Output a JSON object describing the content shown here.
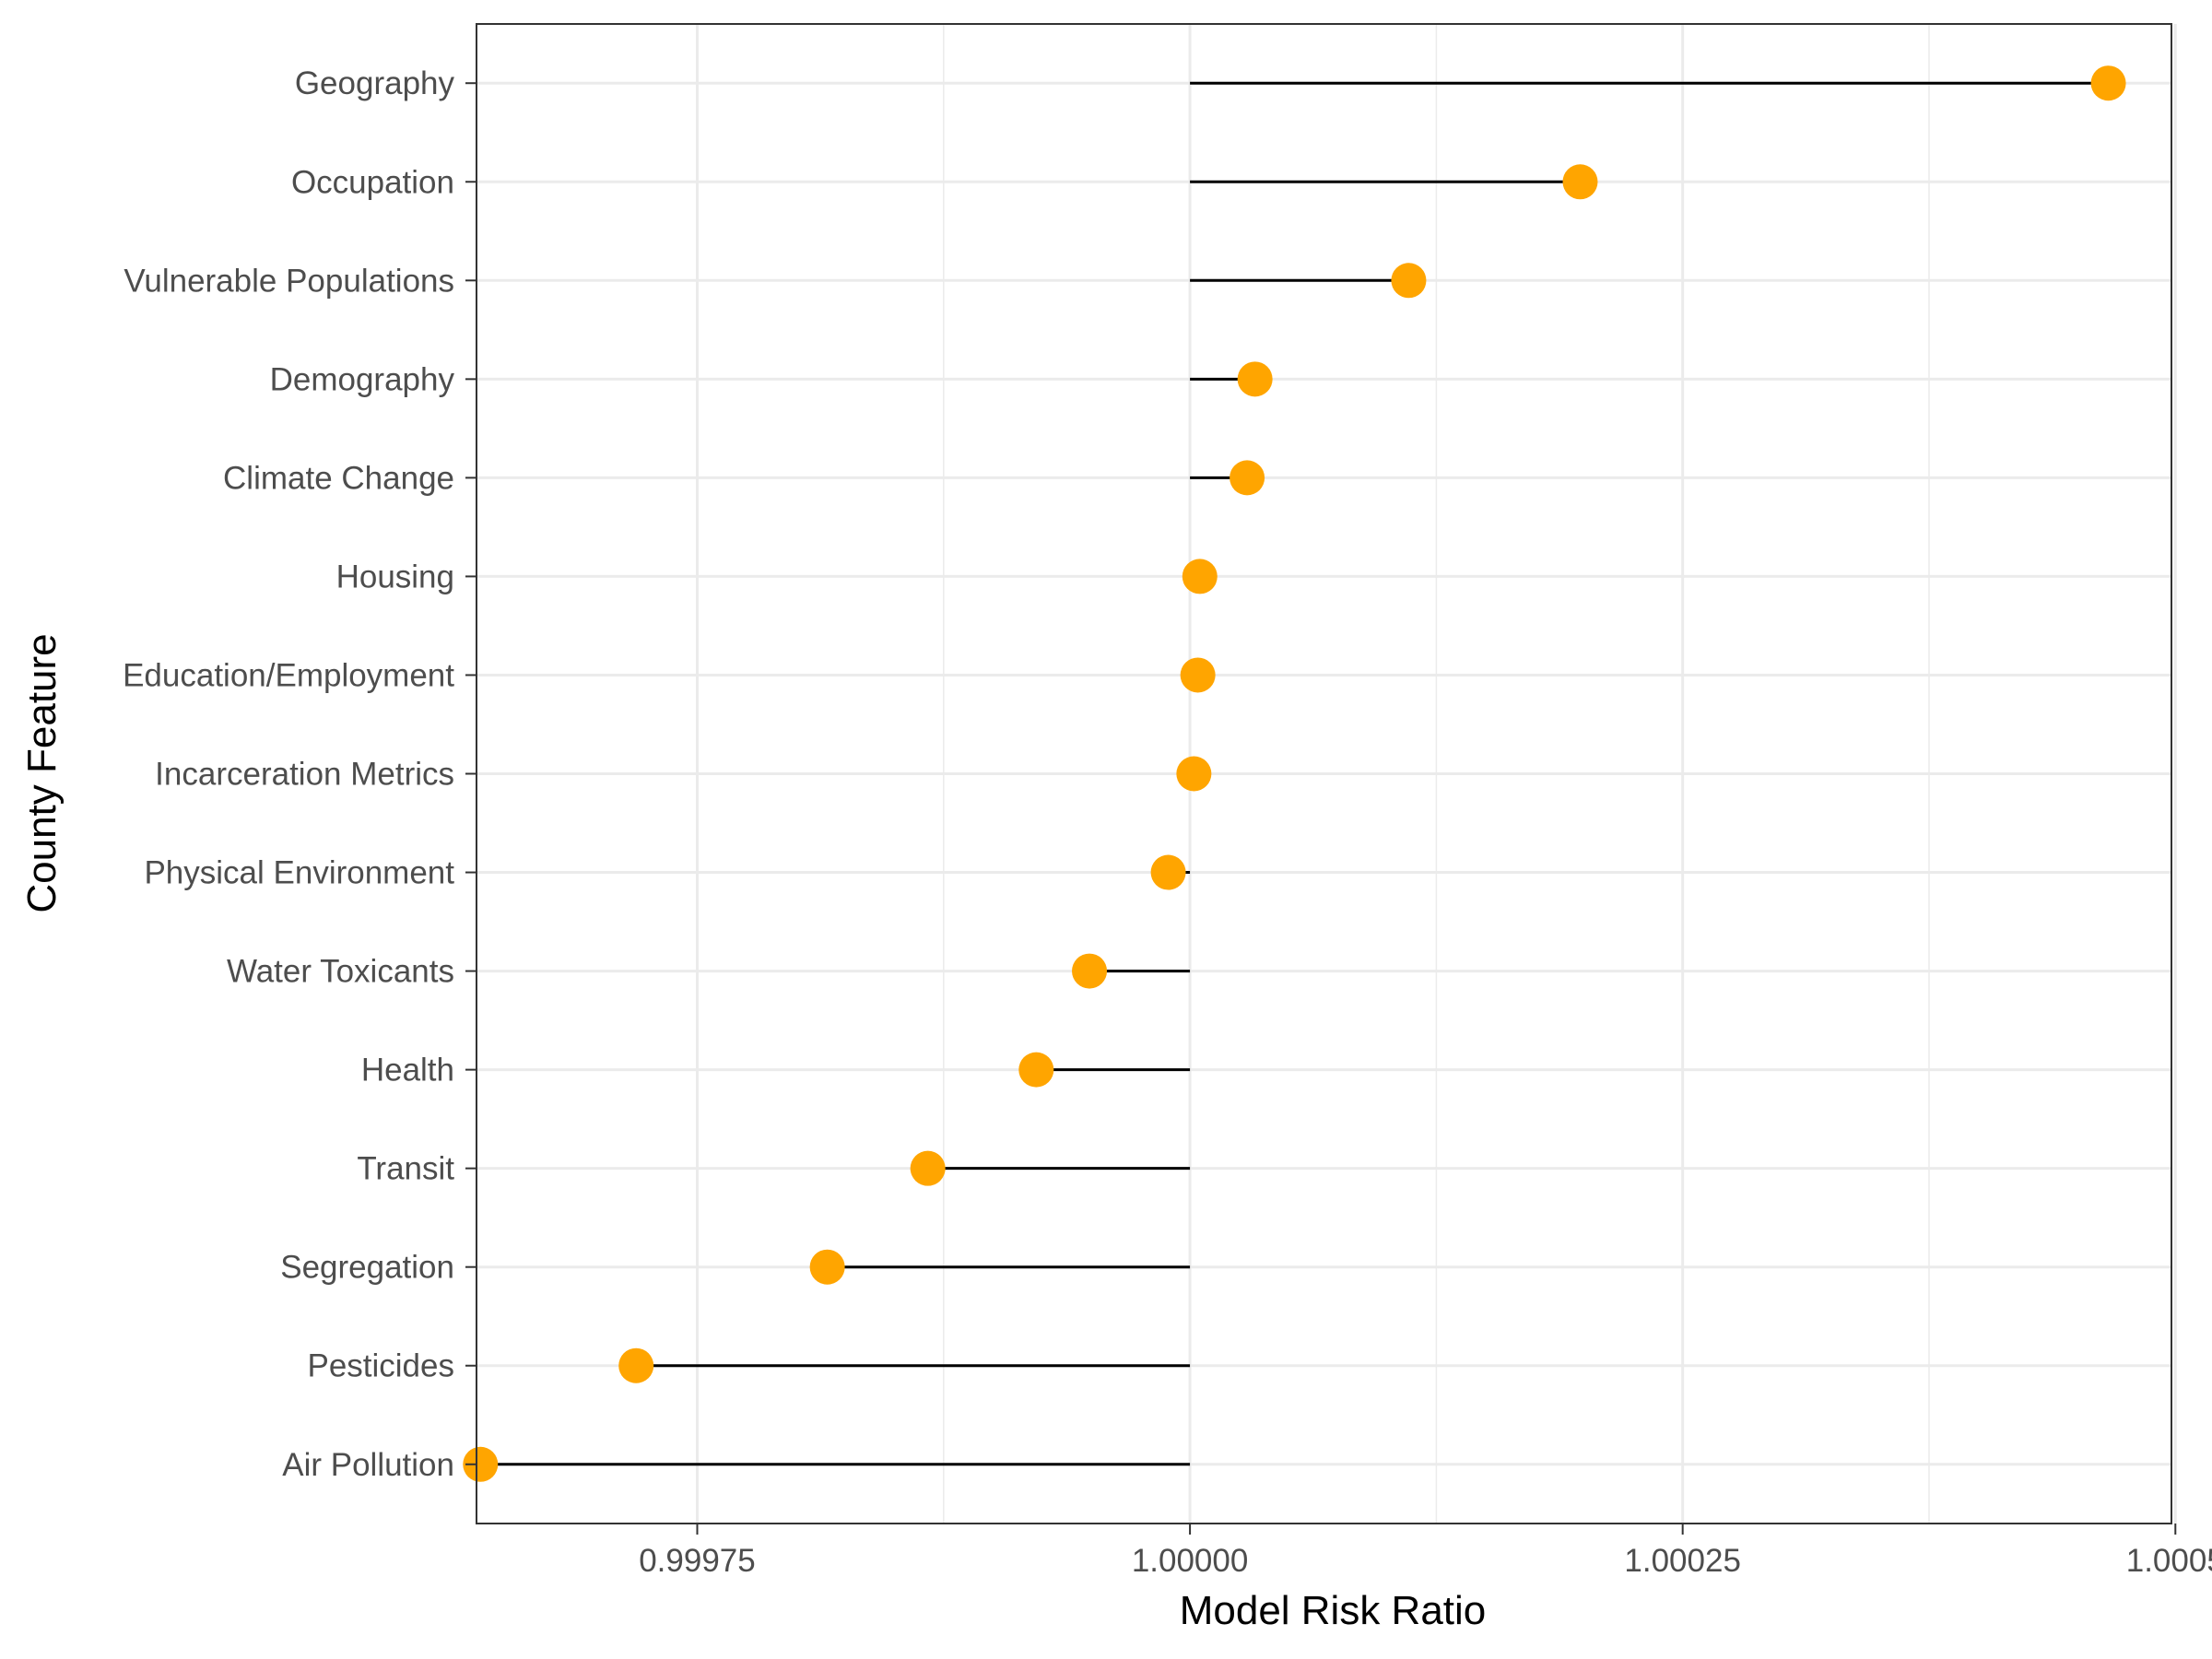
{
  "chart_data": {
    "type": "lollipop",
    "xlabel": "Model Risk Ratio",
    "ylabel": "County Feature",
    "baseline": 1.0,
    "xlim": [
      0.999638,
      1.000498
    ],
    "x_ticks": [
      0.99975,
      1.0,
      1.00025,
      1.0005
    ],
    "x_tick_labels": [
      "0.99975",
      "1.00000",
      "1.00025",
      "1.0005"
    ],
    "grid": true,
    "point_color": "#FFA500",
    "segment_color": "#000000",
    "categories": [
      "Geography",
      "Occupation",
      "Vulnerable Populations",
      "Demography",
      "Climate Change",
      "Housing",
      "Education/Employment",
      "Incarceration Metrics",
      "Physical Environment",
      "Water Toxicants",
      "Health",
      "Transit",
      "Segregation",
      "Pesticides",
      "Air Pollution"
    ],
    "values": [
      1.000466,
      1.000198,
      1.000111,
      1.000033,
      1.000029,
      1.000005,
      1.000004,
      1.000002,
      0.999989,
      0.999949,
      0.999922,
      0.999867,
      0.999816,
      0.999719,
      0.99964
    ]
  }
}
